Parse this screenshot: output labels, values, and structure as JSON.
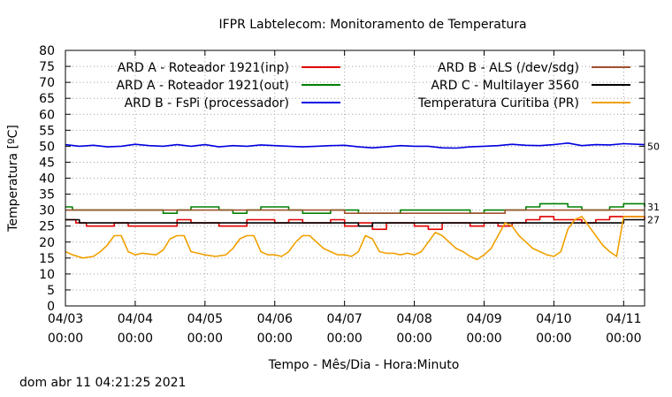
{
  "chart_data": {
    "type": "line",
    "title": "IFPR Labtelecom: Monitoramento de Temperatura",
    "xlabel": "Tempo - Mês/Dia - Hora:Minuto",
    "ylabel": "Temperatura [ºC]",
    "xlim": [
      0,
      8.3
    ],
    "ylim": [
      0,
      80
    ],
    "y_ticks": [
      0,
      5,
      10,
      15,
      20,
      25,
      30,
      35,
      40,
      45,
      50,
      55,
      60,
      65,
      70,
      75,
      80
    ],
    "x_ticks": [
      {
        "x": 0,
        "date": "04/03",
        "time": "00:00"
      },
      {
        "x": 1,
        "date": "04/04",
        "time": "00:00"
      },
      {
        "x": 2,
        "date": "04/05",
        "time": "00:00"
      },
      {
        "x": 3,
        "date": "04/06",
        "time": "00:00"
      },
      {
        "x": 4,
        "date": "04/07",
        "time": "00:00"
      },
      {
        "x": 5,
        "date": "04/08",
        "time": "00:00"
      },
      {
        "x": 6,
        "date": "04/09",
        "time": "00:00"
      },
      {
        "x": 7,
        "date": "04/10",
        "time": "00:00"
      },
      {
        "x": 8,
        "date": "04/11",
        "time": "00:00"
      }
    ],
    "grid": true,
    "legend": "top, two columns",
    "series": [
      {
        "name": "ARD A - Roteador 1921(inp)",
        "color": "#e00000",
        "legend_col": 0,
        "step": true,
        "x": [
          0,
          0.15,
          0.3,
          0.5,
          0.7,
          0.9,
          1.1,
          1.35,
          1.6,
          1.8,
          2.0,
          2.2,
          2.4,
          2.6,
          2.8,
          3.0,
          3.2,
          3.4,
          3.6,
          3.8,
          4.0,
          4.2,
          4.4,
          4.6,
          4.8,
          5.0,
          5.2,
          5.4,
          5.6,
          5.8,
          6.0,
          6.2,
          6.4,
          6.6,
          6.8,
          7.0,
          7.2,
          7.4,
          7.6,
          7.8,
          8.0,
          8.3
        ],
        "y": [
          27,
          26,
          25,
          25,
          26,
          25,
          25,
          25,
          27,
          26,
          26,
          25,
          25,
          27,
          27,
          26,
          27,
          26,
          26,
          27,
          25,
          26,
          24,
          26,
          26,
          25,
          24,
          26,
          26,
          25,
          26,
          25,
          26,
          27,
          28,
          27,
          27,
          26,
          27,
          28,
          28,
          27
        ]
      },
      {
        "name": "ARD A - Roteador 1921(out)",
        "color": "#008000",
        "legend_col": 0,
        "step": true,
        "x": [
          0,
          0.1,
          0.3,
          0.5,
          0.6,
          0.8,
          1.0,
          1.2,
          1.4,
          1.6,
          1.8,
          2.0,
          2.2,
          2.4,
          2.6,
          2.8,
          3.0,
          3.2,
          3.4,
          3.6,
          3.8,
          4.0,
          4.2,
          4.4,
          4.6,
          4.8,
          5.0,
          5.2,
          5.4,
          5.6,
          5.8,
          6.0,
          6.2,
          6.4,
          6.6,
          6.8,
          7.0,
          7.2,
          7.4,
          7.6,
          7.8,
          8.0,
          8.2,
          8.3
        ],
        "y": [
          31,
          30,
          30,
          30,
          30,
          30,
          30,
          30,
          29,
          30,
          31,
          31,
          30,
          29,
          30,
          31,
          31,
          30,
          29,
          29,
          30,
          30,
          29,
          29,
          29,
          30,
          30,
          30,
          30,
          30,
          29,
          30,
          30,
          30,
          31,
          32,
          32,
          31,
          30,
          30,
          31,
          32,
          32,
          31
        ]
      },
      {
        "name": "ARD B - FsPi (processador)",
        "color": "#0000e0",
        "legend_col": 0,
        "step": false,
        "x": [
          0,
          0.2,
          0.4,
          0.6,
          0.8,
          1.0,
          1.2,
          1.4,
          1.6,
          1.8,
          2.0,
          2.2,
          2.4,
          2.6,
          2.8,
          3.0,
          3.2,
          3.4,
          3.6,
          3.8,
          4.0,
          4.2,
          4.4,
          4.6,
          4.8,
          5.0,
          5.2,
          5.4,
          5.6,
          5.8,
          6.0,
          6.2,
          6.4,
          6.6,
          6.8,
          7.0,
          7.2,
          7.4,
          7.6,
          7.8,
          8.0,
          8.3
        ],
        "y": [
          50.5,
          50,
          50.3,
          49.8,
          50,
          50.6,
          50.2,
          50,
          50.5,
          50,
          50.5,
          49.8,
          50.2,
          50,
          50.4,
          50.2,
          50,
          49.8,
          50,
          50.2,
          50.3,
          49.8,
          49.5,
          49.8,
          50.2,
          50,
          50,
          49.5,
          49.4,
          49.8,
          50,
          50.2,
          50.6,
          50.3,
          50.2,
          50.5,
          51,
          50.2,
          50.5,
          50.4,
          50.8,
          50.5
        ]
      },
      {
        "name": "ARD B - ALS (/dev/sdg)",
        "color": "#a0522d",
        "legend_col": 1,
        "step": true,
        "x": [
          0,
          0.8,
          1.0,
          2.0,
          3.0,
          3.8,
          4.0,
          5.0,
          6.0,
          6.2,
          6.3,
          7.0,
          8.0,
          8.3
        ],
        "y": [
          30,
          30,
          30,
          30,
          30,
          30,
          29,
          29,
          29,
          29,
          30,
          30,
          30,
          30
        ]
      },
      {
        "name": "ARD C - Multilayer 3560",
        "color": "#000000",
        "legend_col": 1,
        "step": true,
        "x": [
          0,
          0.2,
          1.0,
          2.0,
          3.0,
          3.8,
          4.2,
          4.4,
          5.0,
          5.8,
          6.0,
          6.2,
          6.8,
          7.0,
          7.6,
          8.0,
          8.3
        ],
        "y": [
          27,
          26,
          26,
          26,
          26,
          26,
          25,
          26,
          26,
          26,
          26,
          26,
          26,
          26,
          26,
          27,
          27
        ]
      },
      {
        "name": "Temperatura Curitiba (PR)",
        "color": "#f0a000",
        "legend_col": 1,
        "step": false,
        "x": [
          0,
          0.1,
          0.25,
          0.4,
          0.5,
          0.6,
          0.7,
          0.8,
          0.9,
          1.0,
          1.1,
          1.3,
          1.4,
          1.5,
          1.6,
          1.7,
          1.8,
          1.9,
          2.0,
          2.15,
          2.3,
          2.4,
          2.5,
          2.6,
          2.7,
          2.8,
          2.9,
          3.0,
          3.1,
          3.2,
          3.3,
          3.4,
          3.5,
          3.6,
          3.7,
          3.8,
          3.9,
          4.0,
          4.1,
          4.2,
          4.3,
          4.4,
          4.5,
          4.6,
          4.7,
          4.8,
          4.9,
          5.0,
          5.1,
          5.2,
          5.3,
          5.4,
          5.5,
          5.6,
          5.7,
          5.8,
          5.9,
          6.0,
          6.1,
          6.2,
          6.3,
          6.4,
          6.5,
          6.6,
          6.7,
          6.8,
          6.9,
          7.0,
          7.1,
          7.2,
          7.3,
          7.4,
          7.5,
          7.6,
          7.7,
          7.8,
          7.9,
          8.0,
          8.1,
          8.2,
          8.3
        ],
        "y": [
          17,
          16,
          15,
          15.5,
          17,
          19,
          22,
          22,
          17,
          16,
          16.5,
          16,
          17.5,
          21,
          22,
          22,
          17,
          16.5,
          16,
          15.5,
          16,
          18,
          21,
          22,
          22,
          17,
          16,
          16,
          15.5,
          17,
          20,
          22,
          22,
          20,
          18,
          17,
          16,
          16,
          15.5,
          17,
          22,
          21,
          17,
          16.5,
          16.5,
          16,
          16.5,
          16,
          17,
          20,
          23,
          22,
          20,
          18,
          17,
          15.5,
          14.5,
          16,
          18,
          22,
          26,
          25,
          22,
          20,
          18,
          17,
          16,
          15.5,
          17,
          24,
          27,
          28,
          25,
          22,
          19,
          17,
          15.5,
          28,
          28,
          28,
          28
        ]
      }
    ],
    "annotations": [
      {
        "y": 50,
        "text": "50"
      },
      {
        "y": 31,
        "text": "31"
      },
      {
        "y": 27,
        "text": "27"
      }
    ]
  },
  "footer_timestamp": "dom abr 11 04:21:25 2021"
}
